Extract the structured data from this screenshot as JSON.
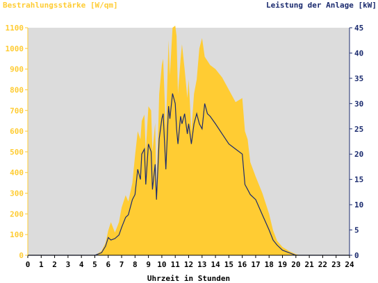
{
  "chart_data": {
    "type": "area",
    "left_axis_title": "Bestrahlungsstärke [W/qm]",
    "right_axis_title": "Leistung der Anlage [kW]",
    "xlabel": "Uhrzeit in Stunden",
    "xlim": [
      0,
      24
    ],
    "ylim_left": [
      0,
      1100
    ],
    "ylim_right": [
      0,
      45
    ],
    "x_ticks": [
      0,
      1,
      2,
      3,
      4,
      5,
      6,
      7,
      8,
      9,
      10,
      11,
      12,
      13,
      14,
      15,
      16,
      17,
      18,
      19,
      20,
      21,
      22,
      23,
      24
    ],
    "y_ticks_left": [
      0,
      100,
      200,
      300,
      400,
      500,
      600,
      700,
      800,
      900,
      1000,
      1100
    ],
    "y_ticks_right": [
      0,
      5,
      10,
      15,
      20,
      25,
      30,
      35,
      40,
      45
    ],
    "grid": false,
    "colors": {
      "background": "#dcdcdc",
      "irradiance": "#ffcc33",
      "power": "#1a2a6e",
      "left_axis": "#ffcc33",
      "right_axis": "#1a2a6e",
      "x_axis": "#000000"
    },
    "series": [
      {
        "axis": "left",
        "kind": "area",
        "x": [
          0,
          5,
          5.5,
          5.8,
          6.0,
          6.2,
          6.5,
          6.8,
          7.0,
          7.3,
          7.5,
          7.8,
          8.0,
          8.2,
          8.4,
          8.5,
          8.7,
          8.8,
          9.0,
          9.2,
          9.3,
          9.5,
          9.6,
          9.8,
          10.0,
          10.1,
          10.3,
          10.5,
          10.6,
          10.8,
          11.0,
          11.1,
          11.2,
          11.4,
          11.5,
          11.7,
          11.9,
          12.0,
          12.2,
          12.4,
          12.6,
          12.8,
          13.0,
          13.2,
          13.4,
          13.6,
          14.0,
          14.5,
          15.0,
          15.5,
          16.0,
          16.2,
          16.4,
          16.6,
          17.0,
          17.5,
          18.0,
          18.3,
          18.6,
          19.0,
          19.5,
          20.0,
          20.3,
          24
        ],
        "values": [
          0,
          0,
          20,
          60,
          120,
          160,
          110,
          160,
          230,
          290,
          260,
          350,
          480,
          600,
          560,
          650,
          680,
          500,
          720,
          700,
          500,
          640,
          300,
          780,
          920,
          950,
          600,
          1040,
          870,
          1100,
          1110,
          1060,
          780,
          950,
          1020,
          900,
          760,
          850,
          600,
          780,
          850,
          1000,
          1050,
          960,
          940,
          920,
          900,
          860,
          800,
          740,
          760,
          600,
          560,
          450,
          380,
          300,
          200,
          120,
          70,
          40,
          20,
          5,
          0,
          0
        ]
      },
      {
        "axis": "right",
        "kind": "line",
        "x": [
          0,
          5,
          5.5,
          5.8,
          6.0,
          6.2,
          6.5,
          6.8,
          7.0,
          7.3,
          7.5,
          7.8,
          8.0,
          8.2,
          8.4,
          8.5,
          8.7,
          8.8,
          9.0,
          9.2,
          9.3,
          9.5,
          9.6,
          9.8,
          10.0,
          10.1,
          10.3,
          10.5,
          10.6,
          10.8,
          11.0,
          11.1,
          11.2,
          11.4,
          11.5,
          11.7,
          11.9,
          12.0,
          12.2,
          12.4,
          12.6,
          12.8,
          13.0,
          13.2,
          13.4,
          13.6,
          14.0,
          14.5,
          15.0,
          15.5,
          16.0,
          16.2,
          16.4,
          16.6,
          17.0,
          17.5,
          18.0,
          18.3,
          18.6,
          19.0,
          19.5,
          20.0,
          20.3,
          24
        ],
        "values": [
          0,
          0,
          0.5,
          1.8,
          3.5,
          3.0,
          3.3,
          4.0,
          5.5,
          7.5,
          8.0,
          11.0,
          12.0,
          17.0,
          15.0,
          20.0,
          21.0,
          14.0,
          22.0,
          20.5,
          13.0,
          18.0,
          11.0,
          23.0,
          27.0,
          28.0,
          17.0,
          29.5,
          27.0,
          32.0,
          30.0,
          25.0,
          22.0,
          27.5,
          26.0,
          28.0,
          24.0,
          26.0,
          22.0,
          26.0,
          28.0,
          26.0,
          25.0,
          30.0,
          28.0,
          27.5,
          26.0,
          24.0,
          22.0,
          21.0,
          20.0,
          14.0,
          13.0,
          12.0,
          11.0,
          8.0,
          5.0,
          3.0,
          2.0,
          1.0,
          0.5,
          0,
          0,
          0
        ]
      }
    ]
  }
}
